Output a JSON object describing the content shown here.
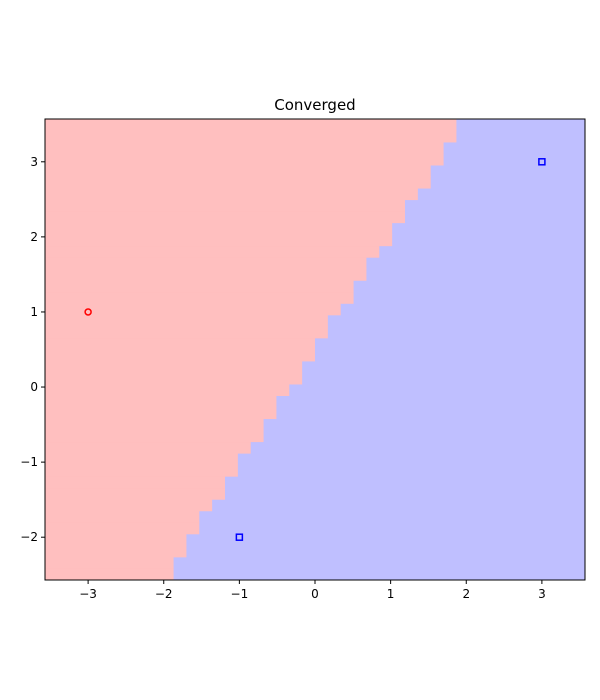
{
  "chart_data": {
    "type": "scatter",
    "title": "Converged",
    "xlabel": "",
    "ylabel": "",
    "xlim": [
      -3.57,
      3.57
    ],
    "ylim": [
      -2.57,
      3.57
    ],
    "x_ticks": [
      -3,
      -2,
      -1,
      0,
      1,
      2,
      3
    ],
    "y_ticks": [
      -2,
      -1,
      0,
      1,
      2,
      3
    ],
    "grid": false,
    "legend": "none",
    "decision_boundary": {
      "description": "class regions separated by a straight line, rendered as a coarse staircase",
      "line_points": [
        [
          -2,
          -2.57
        ],
        [
          2,
          3.57
        ]
      ],
      "left_region_color": "#ffbfbf",
      "right_region_color": "#bfbfff"
    },
    "series": [
      {
        "marker": "circle",
        "color": "#ff0000",
        "points": [
          [
            -3,
            1
          ]
        ]
      },
      {
        "marker": "square",
        "color": "#0000ff",
        "points": [
          [
            -1,
            -2
          ],
          [
            3,
            3
          ]
        ]
      }
    ]
  }
}
